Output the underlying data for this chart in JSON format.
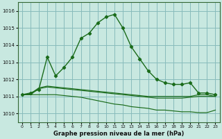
{
  "background_color": "#c8e8e0",
  "grid_color": "#88bbbb",
  "line_color": "#1a6b1a",
  "title": "Graphe pression niveau de la mer (hPa)",
  "xlim": [
    -0.5,
    23.5
  ],
  "ylim": [
    1009.5,
    1016.5
  ],
  "yticks": [
    1010,
    1011,
    1012,
    1013,
    1014,
    1015,
    1016
  ],
  "xticks": [
    0,
    1,
    2,
    3,
    4,
    5,
    6,
    7,
    8,
    9,
    10,
    11,
    12,
    13,
    14,
    15,
    16,
    17,
    18,
    19,
    20,
    21,
    22,
    23
  ],
  "series_main_x": [
    0,
    1,
    2,
    3,
    4,
    5,
    6,
    7,
    8,
    9,
    10,
    11,
    12,
    13,
    14,
    15,
    16,
    17,
    18,
    19,
    20,
    21,
    22,
    23
  ],
  "series_main_y": [
    1011.1,
    1011.2,
    1011.4,
    1013.3,
    1012.2,
    1012.7,
    1013.3,
    1014.4,
    1014.7,
    1015.3,
    1015.65,
    1015.8,
    1015.0,
    1013.9,
    1013.2,
    1012.5,
    1012.0,
    1011.8,
    1011.7,
    1011.7,
    1011.8,
    1011.2,
    1011.2,
    1011.1
  ],
  "series_flat1_x": [
    0,
    1,
    2,
    3,
    4,
    5,
    6,
    7,
    8,
    9,
    10,
    11,
    12,
    13,
    14,
    15,
    16,
    17,
    18,
    19,
    20,
    21,
    22,
    23
  ],
  "series_flat1_y": [
    1011.1,
    1011.15,
    1011.5,
    1011.6,
    1011.55,
    1011.5,
    1011.45,
    1011.4,
    1011.35,
    1011.3,
    1011.25,
    1011.2,
    1011.15,
    1011.1,
    1011.05,
    1011.0,
    1011.0,
    1011.0,
    1011.0,
    1011.0,
    1011.0,
    1011.1,
    1011.1,
    1011.0
  ],
  "series_flat2_x": [
    0,
    1,
    2,
    3,
    4,
    5,
    6,
    7,
    8,
    9,
    10,
    11,
    12,
    13,
    14,
    15,
    16,
    17,
    18,
    19,
    20,
    21,
    22,
    23
  ],
  "series_flat2_y": [
    1011.1,
    1011.1,
    1011.45,
    1011.55,
    1011.5,
    1011.45,
    1011.4,
    1011.35,
    1011.3,
    1011.25,
    1011.2,
    1011.15,
    1011.1,
    1011.05,
    1011.0,
    1010.95,
    1010.9,
    1010.9,
    1010.9,
    1010.9,
    1010.95,
    1011.0,
    1011.0,
    1011.0
  ],
  "series_decline_x": [
    0,
    1,
    2,
    3,
    4,
    5,
    6,
    7,
    8,
    9,
    10,
    11,
    12,
    13,
    14,
    15,
    16,
    17,
    18,
    19,
    20,
    21,
    22,
    23
  ],
  "series_decline_y": [
    1011.1,
    1011.1,
    1011.1,
    1011.1,
    1011.1,
    1011.05,
    1011.0,
    1010.95,
    1010.85,
    1010.75,
    1010.65,
    1010.55,
    1010.5,
    1010.4,
    1010.35,
    1010.3,
    1010.2,
    1010.2,
    1010.15,
    1010.1,
    1010.1,
    1010.05,
    1010.05,
    1010.2
  ]
}
